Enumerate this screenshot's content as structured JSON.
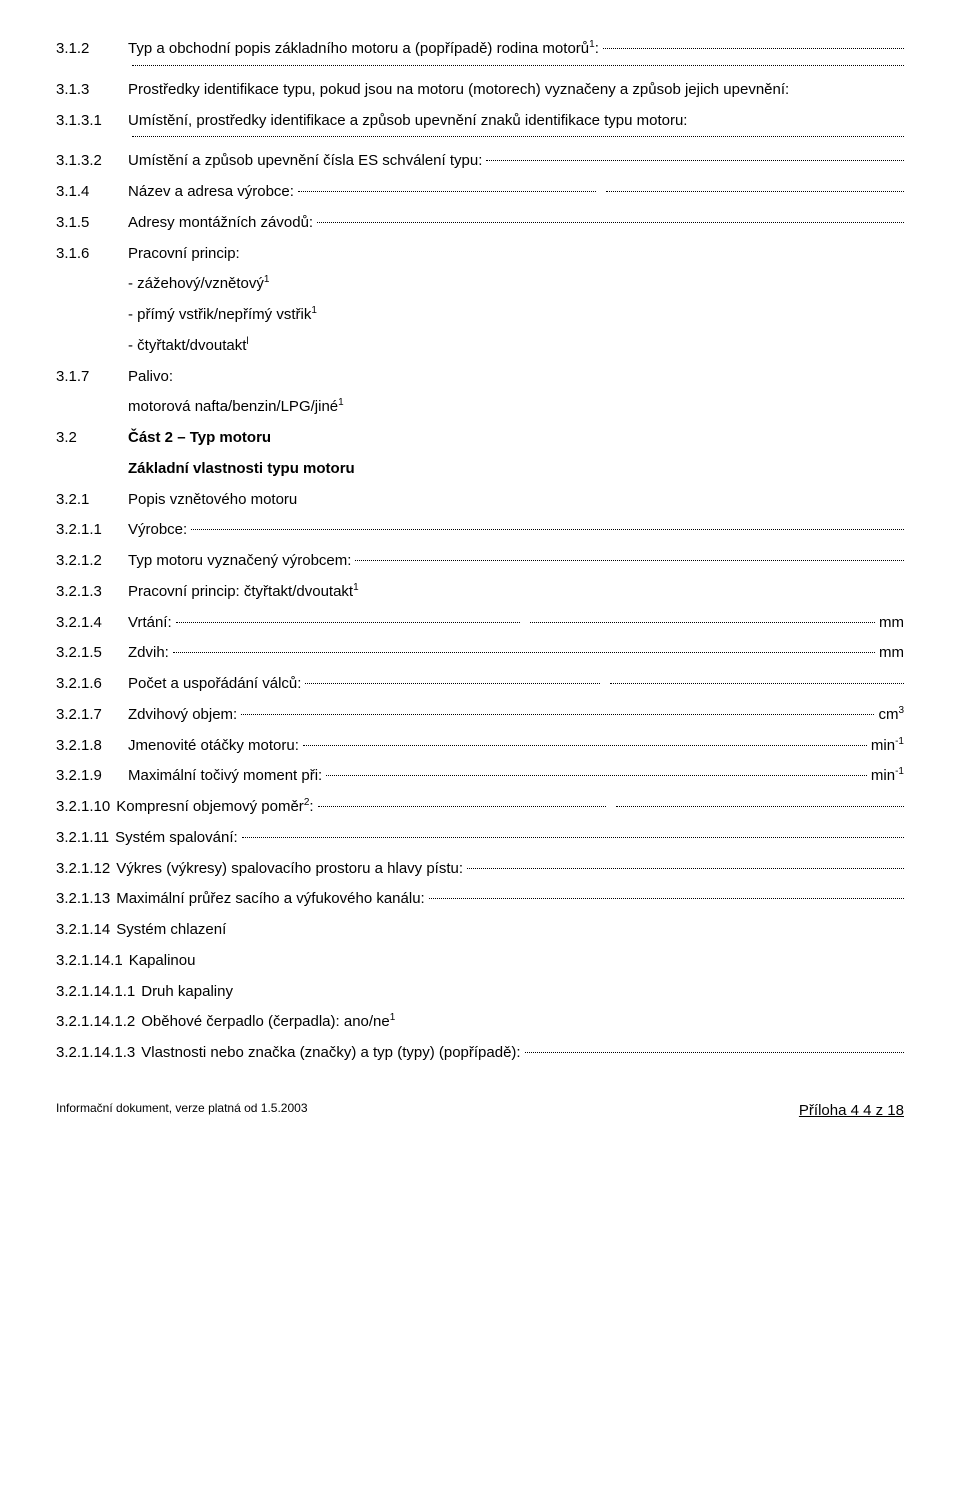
{
  "items": [
    {
      "num": "3.1.2",
      "text": "Typ a obchodní popis základního motoru a (popřípadě) rodina motorů",
      "sup": "1",
      "after": ":",
      "dots": true,
      "extraDotsBefore": true
    },
    {
      "num": "3.1.3",
      "text": "Prostředky identifikace typu, pokud jsou na motoru (motorech) vyznačeny a způsob jejich upevnění:"
    },
    {
      "num": "3.1.3.1",
      "text": "Umístění, prostředky identifikace a způsob upevnění znaků identifikace typu motoru:",
      "dotsBelow": true
    },
    {
      "num": "3.1.3.2",
      "text": "Umístění a způsob upevnění čísla ES schválení typu:",
      "dots": true
    },
    {
      "num": "3.1.4",
      "text": "Název a adresa výrobce:",
      "dots": true,
      "dblDots": true
    },
    {
      "num": "3.1.5",
      "text": "Adresy montážních závodů:",
      "dots": true
    },
    {
      "num": "3.1.6",
      "text": "Pracovní princip:",
      "sub": [
        "- zážehový/vznětový<span class=\"sup\">1</span>",
        "- přímý vstřik/nepřímý vstřik<span class=\"sup\">1</span>",
        "- čtyřtakt/dvoutakt<span class=\"sup\">l</span>"
      ]
    },
    {
      "num": "3.1.7",
      "text": "Palivo:",
      "sub": [
        "motorová nafta/benzin/LPG/jiné<span class=\"sup\">1</span>"
      ]
    },
    {
      "num": "3.2",
      "text": "Část 2 – Typ motoru",
      "bold": true
    },
    {
      "num": "",
      "text": "Základní vlastnosti typu motoru",
      "bold": true,
      "indent": true
    },
    {
      "num": "3.2.1",
      "text": "Popis vznětového motoru"
    },
    {
      "num": "3.2.1.1",
      "text": "Výrobce:",
      "dots": true
    },
    {
      "num": "3.2.1.2",
      "text": "Typ motoru vyznačený výrobcem:",
      "dots": true
    },
    {
      "num": "3.2.1.3",
      "text": "Pracovní princip: čtyřtakt/dvoutakt",
      "sup": "1"
    },
    {
      "num": "3.2.1.4",
      "text": "Vrtání:",
      "dots": true,
      "dblDots": true,
      "tail": "mm"
    },
    {
      "num": "3.2.1.5",
      "text": "Zdvih:",
      "dots": true,
      "tail": "mm"
    },
    {
      "num": "3.2.1.6",
      "text": "Počet a uspořádání válců:",
      "dots": true,
      "dblDots": true
    },
    {
      "num": "3.2.1.7",
      "text": "Zdvihový objem:",
      "dots": true,
      "tail": "cm<span class=\"sup\">3</span>"
    },
    {
      "num": "3.2.1.8",
      "text": "Jmenovité otáčky motoru:",
      "dots": true,
      "tail": "min<span class=\"sup\">-1</span>"
    },
    {
      "num": "3.2.1.9",
      "text": "Maximální točivý moment při:",
      "dots": true,
      "tail": "min<span class=\"sup\">-1</span>"
    },
    {
      "num": "3.2.1.10",
      "text": "Kompresní objemový poměr",
      "sup": "2",
      "after": ":",
      "dots": true,
      "dblDots": true,
      "nogap": true
    },
    {
      "num": "3.2.1.11",
      "text": "Systém spalování:",
      "dots": true,
      "nogap": true
    },
    {
      "num": "3.2.1.12",
      "text": "Výkres (výkresy) spalovacího prostoru a hlavy pístu:",
      "dots": true,
      "nogap": true
    },
    {
      "num": "3.2.1.13",
      "text": "Maximální průřez sacího a výfukového kanálu:",
      "dots": true,
      "nogap": true
    },
    {
      "num": "3.2.1.14",
      "text": "Systém chlazení",
      "nogap": true
    },
    {
      "num": "3.2.1.14.1",
      "text": "Kapalinou",
      "nogap": true
    },
    {
      "num": "3.2.1.14.1.1",
      "text": "Druh kapaliny",
      "nogap": true
    },
    {
      "num": "3.2.1.14.1.2",
      "text": "Oběhové čerpadlo (čerpadla): ano/ne",
      "sup": "1",
      "nogap": true
    },
    {
      "num": "3.2.1.14.1.3",
      "text": "Vlastnosti nebo značka (značky) a typ (typy) (popřípadě):",
      "dots": true,
      "nogap": true
    }
  ],
  "footer": {
    "left": "Informační dokument, verze platná od 1.5.2003",
    "right": "Příloha 4  4 z 18"
  }
}
